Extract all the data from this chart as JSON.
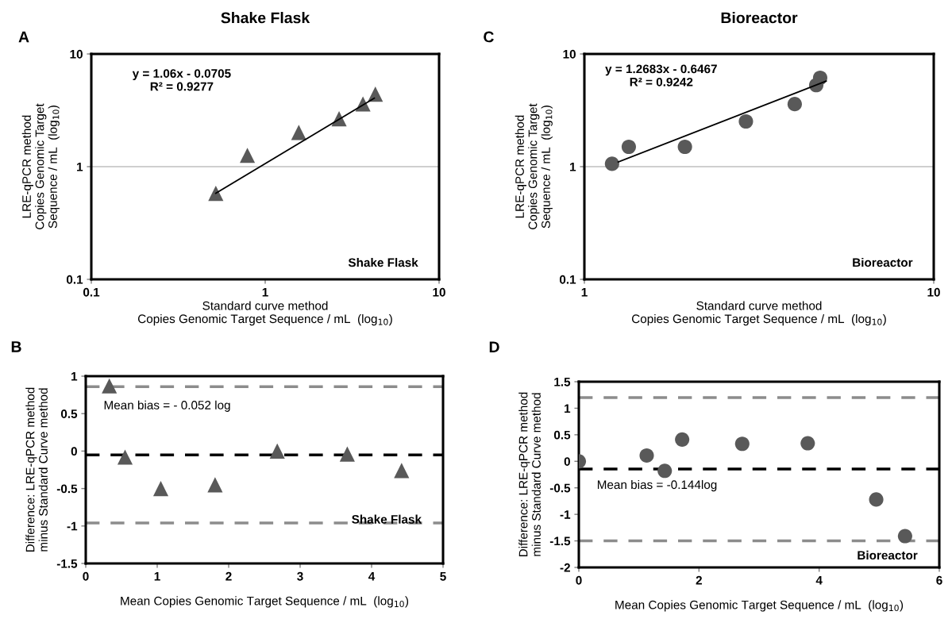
{
  "chart_data": [
    {
      "type": "scatter",
      "title": "Shake Flask",
      "xlabel": "Standard curve method\nCopies Genomic Target Sequence / mL  (log$_{10}$)",
      "ylabel": "LRE-qPCR method\nCopies Genomic Target\nSequence / mL  (log$_{10}$)",
      "annotations": [
        "A",
        "y = 1.06x - 0.0705\nR² = 0.9277",
        "Shake Flask"
      ],
      "log": "xy",
      "grid": "y",
      "xlim": [
        0.1,
        10
      ],
      "xticks": [
        0.1,
        1,
        10
      ],
      "ylim": [
        0.1,
        10
      ],
      "yticks": [
        0.1,
        1,
        10
      ],
      "series": [
        {
          "marker": "triangle",
          "color": "#595959",
          "x": [
            0.52,
            0.79,
            1.56,
            2.66,
            3.65,
            4.3
          ],
          "values": [
            0.58,
            1.26,
            2.01,
            2.66,
            3.6,
            4.4
          ]
        },
        {
          "type": "line",
          "color": "#000000",
          "x": [
            0.52,
            4.24
          ],
          "values": [
            0.58,
            4.05
          ]
        }
      ]
    },
    {
      "type": "scatter",
      "xlabel": "Mean Copies Genomic Target Sequence / mL  (log$_{10}$)",
      "ylabel": "Difference: LRE-qPCR method\nminus Standard Curve method",
      "annotations": [
        "B",
        "Shake Flask"
      ],
      "xlim": [
        0,
        5
      ],
      "xticks": [
        0,
        1,
        2,
        3,
        4,
        5
      ],
      "ylim": [
        -1.5,
        1
      ],
      "yticks": [
        -1.5,
        -1,
        -0.5,
        0,
        0.5,
        1
      ],
      "ref_lines": [
        {
          "axis": "y",
          "value": 0.86,
          "color": "#8c8c8c",
          "line_style": "dashed"
        },
        {
          "axis": "y",
          "value": -0.052,
          "label": "Mean bias = - 0.052 log",
          "color": "#000000",
          "line_style": "dashed"
        },
        {
          "axis": "y",
          "value": -0.96,
          "color": "#8c8c8c",
          "line_style": "dashed"
        }
      ],
      "series": [
        {
          "marker": "triangle",
          "color": "#595959",
          "x": [
            0.33,
            0.55,
            1.05,
            1.81,
            2.68,
            3.66,
            4.42
          ],
          "values": [
            0.87,
            -0.08,
            -0.5,
            -0.45,
            0.0,
            -0.04,
            -0.26
          ]
        }
      ]
    },
    {
      "type": "scatter",
      "title": "Bioreactor",
      "xlabel": "Standard curve method\nCopies Genomic Target Sequence / mL  (log$_{10}$)",
      "ylabel": "LRE-qPCR method\nCopies Genomic Target\nSequence / mL  (log$_{10}$)",
      "annotations": [
        "C",
        "y = 1.2683x - 0.6467\nR² = 0.9242",
        "Bioreactor"
      ],
      "log": "xy",
      "grid": "y",
      "xlim": [
        1,
        10
      ],
      "xticks": [
        1,
        10
      ],
      "ylim": [
        0.1,
        10
      ],
      "yticks": [
        0.1,
        1,
        10
      ],
      "series": [
        {
          "marker": "circle",
          "color": "#595959",
          "x": [
            1.2,
            1.34,
            1.94,
            2.9,
            4.0,
            4.61,
            4.73
          ],
          "values": [
            1.06,
            1.5,
            1.5,
            2.52,
            3.59,
            5.29,
            6.15
          ]
        },
        {
          "type": "line",
          "color": "#000000",
          "x": [
            1.25,
            4.92
          ],
          "values": [
            1.1,
            5.74
          ]
        }
      ]
    },
    {
      "type": "scatter",
      "xlabel": "Mean Copies Genomic Target Sequence / mL  (log$_{10}$)",
      "ylabel": "Difference: LRE-qPCR method\nminus Standard Curve method",
      "annotations": [
        "D",
        "Bioreactor"
      ],
      "xlim": [
        0,
        6
      ],
      "xticks": [
        0,
        2,
        4,
        6
      ],
      "ylim": [
        -2,
        1.5
      ],
      "yticks": [
        -2,
        -1.5,
        -1,
        -0.5,
        0,
        0.5,
        1,
        1.5
      ],
      "ref_lines": [
        {
          "axis": "y",
          "value": 1.2,
          "color": "#8c8c8c",
          "line_style": "dashed"
        },
        {
          "axis": "y",
          "value": -0.144,
          "label": "Mean bias = -0.144log",
          "color": "#000000",
          "line_style": "dashed"
        },
        {
          "axis": "y",
          "value": -1.5,
          "color": "#8c8c8c",
          "line_style": "dashed"
        }
      ],
      "series": [
        {
          "marker": "circle",
          "color": "#595959",
          "x": [
            0.0,
            1.13,
            1.43,
            1.72,
            2.72,
            3.81,
            4.95,
            5.43
          ],
          "values": [
            0.0,
            0.11,
            -0.18,
            0.41,
            0.33,
            0.34,
            -0.72,
            -1.41
          ]
        }
      ]
    }
  ]
}
